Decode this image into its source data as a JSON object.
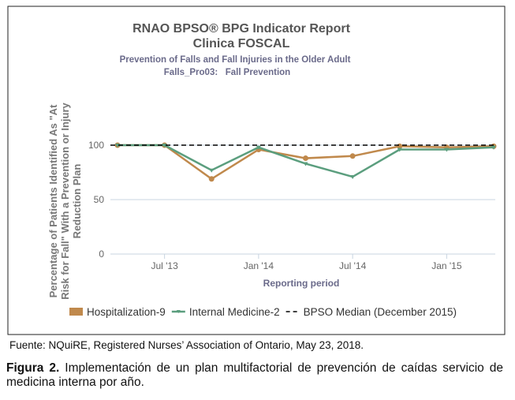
{
  "chart_data": {
    "type": "line",
    "title": "RNAO BPSO® BPG Indicator Report",
    "subtitle": "Clinica FOSCAL",
    "subtitle2": "Prevention of Falls and Fall Injuries in the Older Adult",
    "subtitle3": "Falls_Pro03:   Fall Prevention",
    "xlabel": "Reporting period",
    "ylabel": [
      "Percentage of Patients Identified As \"At",
      "Risk for Fall\" With a Prevention or Injury",
      "Reduction Plan"
    ],
    "x": [
      "2013-04",
      "2013-07",
      "2013-10",
      "2014-01",
      "2014-04",
      "2014-07",
      "2014-10",
      "2015-01",
      "2015-04"
    ],
    "x_ticks": [
      "Jul '13",
      "Jan '14",
      "Jul '14",
      "Jan '15"
    ],
    "y_ticks": [
      "0",
      "50",
      "100"
    ],
    "ylim": [
      0,
      100
    ],
    "grid": "horizontal",
    "legend_position": "bottom",
    "series": [
      {
        "name": "Hospitalization-9",
        "color": "#c0894c",
        "values": [
          100,
          100,
          69,
          96,
          88,
          90,
          99,
          98,
          99
        ]
      },
      {
        "name": "Internal Medicine-2",
        "color": "#5b9e7e",
        "values": [
          100,
          100,
          77,
          98,
          83,
          71,
          96,
          96,
          98
        ]
      },
      {
        "name": "BPSO Median (December 2015)",
        "color": "#000000",
        "style": "dashed",
        "values": [
          100,
          100,
          100,
          100,
          100,
          100,
          100,
          100,
          100
        ]
      }
    ]
  },
  "source": "Fuente: NQuiRE, Registered Nurses’ Association of Ontario, May 23, 2018.",
  "caption": {
    "label": "Figura 2.",
    "text": " Implementación de un plan multifactorial de prevención de caídas servicio de medicina interna por año."
  }
}
